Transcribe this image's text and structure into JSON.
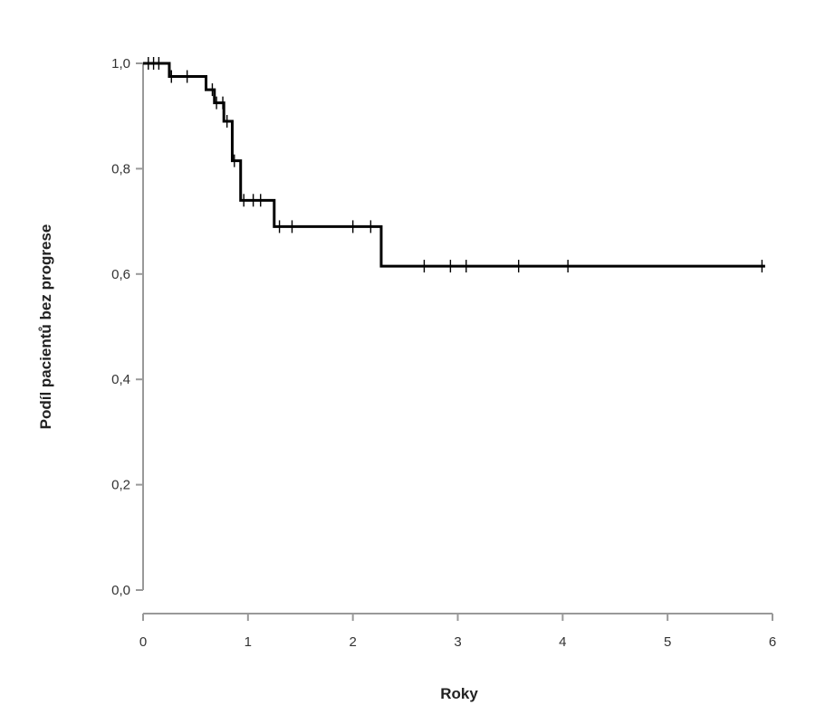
{
  "chart_data": {
    "type": "line",
    "title": "",
    "xlabel": "Roky",
    "ylabel": "Podíl pacientů bez progrese",
    "xlim": [
      0,
      6
    ],
    "ylim": [
      0,
      1
    ],
    "x_ticks": [
      "0",
      "1",
      "2",
      "3",
      "4",
      "5",
      "6"
    ],
    "y_ticks": [
      "0,0",
      "0,2",
      "0,4",
      "0,6",
      "0,8",
      "1,0"
    ],
    "grid": false,
    "legend": "none",
    "line_color": "#000000",
    "axis_color": "#999999",
    "series": [
      {
        "steps": [
          {
            "x": 0.0,
            "y": 1.0
          },
          {
            "x": 0.25,
            "y": 0.975
          },
          {
            "x": 0.6,
            "y": 0.95
          },
          {
            "x": 0.68,
            "y": 0.925
          },
          {
            "x": 0.77,
            "y": 0.89
          },
          {
            "x": 0.85,
            "y": 0.815
          },
          {
            "x": 0.93,
            "y": 0.74
          },
          {
            "x": 1.25,
            "y": 0.69
          },
          {
            "x": 2.27,
            "y": 0.615
          },
          {
            "x": 5.93,
            "y": 0.615
          }
        ],
        "censored": [
          {
            "x": 0.05,
            "y": 1.0
          },
          {
            "x": 0.1,
            "y": 1.0
          },
          {
            "x": 0.15,
            "y": 1.0
          },
          {
            "x": 0.27,
            "y": 0.975
          },
          {
            "x": 0.42,
            "y": 0.975
          },
          {
            "x": 0.66,
            "y": 0.95
          },
          {
            "x": 0.7,
            "y": 0.925
          },
          {
            "x": 0.76,
            "y": 0.925
          },
          {
            "x": 0.8,
            "y": 0.89
          },
          {
            "x": 0.87,
            "y": 0.815
          },
          {
            "x": 0.96,
            "y": 0.74
          },
          {
            "x": 1.05,
            "y": 0.74
          },
          {
            "x": 1.12,
            "y": 0.74
          },
          {
            "x": 1.3,
            "y": 0.69
          },
          {
            "x": 1.42,
            "y": 0.69
          },
          {
            "x": 2.0,
            "y": 0.69
          },
          {
            "x": 2.17,
            "y": 0.69
          },
          {
            "x": 2.68,
            "y": 0.615
          },
          {
            "x": 2.93,
            "y": 0.615
          },
          {
            "x": 3.08,
            "y": 0.615
          },
          {
            "x": 3.58,
            "y": 0.615
          },
          {
            "x": 4.05,
            "y": 0.615
          },
          {
            "x": 5.9,
            "y": 0.615
          }
        ]
      }
    ]
  }
}
